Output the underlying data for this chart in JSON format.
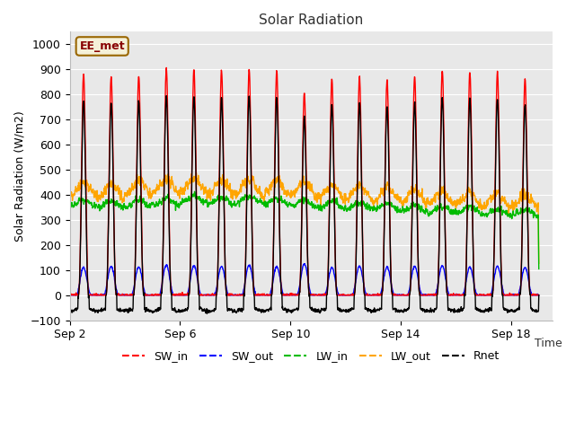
{
  "title": "Solar Radiation",
  "ylabel": "Solar Radiation (W/m2)",
  "xlabel": "Time",
  "ylim": [
    -100,
    1050
  ],
  "xlim": [
    0,
    17.5
  ],
  "bg_color": "#e8e8e8",
  "annotation_text": "EE_met",
  "annotation_bg": "#f5f0d8",
  "annotation_border": "#996600",
  "series": {
    "SW_in": {
      "color": "#ff0000",
      "lw": 1.0
    },
    "SW_out": {
      "color": "#0000ff",
      "lw": 1.0
    },
    "LW_in": {
      "color": "#00bb00",
      "lw": 1.0
    },
    "LW_out": {
      "color": "#ffa500",
      "lw": 1.0
    },
    "Rnet": {
      "color": "#000000",
      "lw": 1.0
    }
  },
  "xtick_positions": [
    0,
    4,
    8,
    12,
    16
  ],
  "xtick_labels": [
    "Sep 2",
    "Sep 6",
    "Sep 10",
    "Sep 14",
    "Sep 18"
  ],
  "ytick_positions": [
    -100,
    0,
    100,
    200,
    300,
    400,
    500,
    600,
    700,
    800,
    900,
    1000
  ],
  "num_days": 17,
  "pts_per_day": 96,
  "sw_in_peaks": [
    880,
    870,
    875,
    905,
    900,
    895,
    900,
    895,
    805,
    860,
    870,
    860,
    870,
    895,
    890,
    890,
    860
  ],
  "sw_out_peaks": [
    110,
    115,
    112,
    120,
    118,
    115,
    120,
    115,
    125,
    110,
    115,
    112,
    115,
    118,
    112,
    115,
    110
  ],
  "lw_in_day": [
    380,
    375,
    380,
    385,
    395,
    390,
    395,
    385,
    380,
    375,
    370,
    365,
    360,
    355,
    350,
    345,
    340
  ],
  "lw_in_night": [
    355,
    348,
    352,
    358,
    368,
    362,
    368,
    358,
    352,
    345,
    342,
    338,
    333,
    328,
    323,
    320,
    318
  ],
  "lw_out_day": [
    450,
    445,
    460,
    465,
    470,
    460,
    465,
    460,
    455,
    440,
    435,
    430,
    425,
    415,
    410,
    405,
    400
  ],
  "lw_out_night": [
    395,
    390,
    400,
    405,
    408,
    400,
    402,
    398,
    395,
    385,
    380,
    375,
    370,
    362,
    358,
    355,
    352
  ]
}
